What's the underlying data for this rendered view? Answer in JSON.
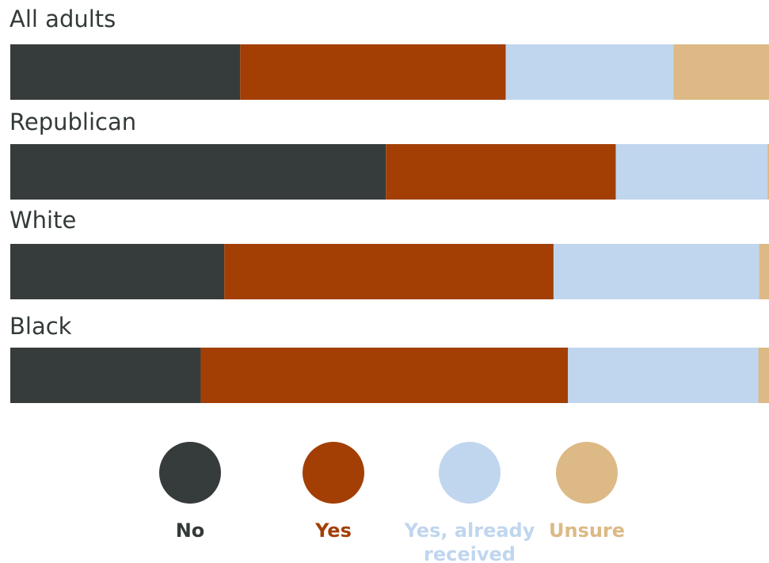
{
  "chart_data": {
    "type": "bar",
    "orientation": "horizontal",
    "stacked": true,
    "categories": [
      "All adults",
      "Republican",
      "White",
      "Black"
    ],
    "series": [
      {
        "name": "No",
        "color": "#363c3b",
        "values": [
          30.3,
          49.5,
          28.2,
          25.1
        ]
      },
      {
        "name": "Yes",
        "color": "#a33f05",
        "values": [
          35.0,
          30.3,
          43.4,
          48.4
        ]
      },
      {
        "name": "Yes, already received",
        "color": "#c0d6ee",
        "values": [
          22.1,
          20.0,
          27.1,
          25.1
        ]
      },
      {
        "name": "Unsure",
        "color": "#dcb985",
        "values": [
          12.6,
          0.2,
          1.3,
          1.4
        ]
      }
    ],
    "xlim": [
      0,
      100
    ],
    "grid": false,
    "legend_position": "bottom",
    "text_color": "#333a39"
  }
}
